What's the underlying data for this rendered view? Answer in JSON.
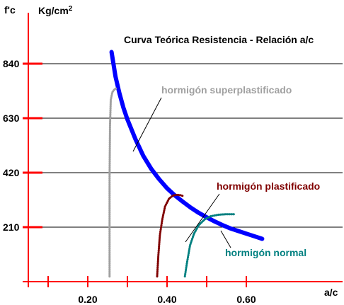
{
  "chart_data": {
    "type": "line",
    "title": "Curva Teórica  Resistencia - Relación a/c",
    "ylabel_main": "f'c",
    "ylabel_unit": "Kg/cm",
    "ylabel_unit_sup": "2",
    "xlabel": "a/c",
    "xlim": [
      0.05,
      0.65
    ],
    "ylim": [
      0,
      940
    ],
    "yticks": [
      210,
      420,
      630,
      840
    ],
    "ytick_labels": [
      "210",
      "420",
      "630",
      "840"
    ],
    "xticks": [
      0.1,
      0.2,
      0.3,
      0.4,
      0.5,
      0.6
    ],
    "xtick_labels": [
      "",
      "0.20",
      "",
      "0.40",
      "",
      "0.60"
    ],
    "grid": true,
    "colors": {
      "axis": "#ff0000",
      "grid": "#000000",
      "main_curve": "#0000ff",
      "superplastificado": "#a0a0a0",
      "plastificado": "#800000",
      "normal": "#008080",
      "title": "#000000"
    },
    "series": [
      {
        "name": "Curva Teórica  Resistencia - Relación a/c",
        "color": "#0000ff",
        "x": [
          0.26,
          0.27,
          0.28,
          0.29,
          0.3,
          0.32,
          0.34,
          0.36,
          0.38,
          0.4,
          0.42,
          0.44,
          0.46,
          0.48,
          0.5,
          0.52,
          0.54,
          0.56,
          0.58,
          0.6,
          0.62,
          0.64
        ],
        "y": [
          885,
          790,
          725,
          670,
          625,
          550,
          485,
          435,
          395,
          360,
          332,
          308,
          285,
          265,
          248,
          232,
          218,
          205,
          195,
          185,
          175,
          165
        ]
      },
      {
        "name": "hormigón superplastificado",
        "color": "#a0a0a0",
        "x": [
          0.255,
          0.255,
          0.256,
          0.258,
          0.262,
          0.268,
          0.272
        ],
        "y": [
          20,
          400,
          600,
          700,
          730,
          742,
          745
        ]
      },
      {
        "name": "hormigón plastificado",
        "color": "#800000",
        "x": [
          0.375,
          0.378,
          0.382,
          0.388,
          0.395,
          0.405,
          0.415,
          0.425,
          0.435,
          0.44
        ],
        "y": [
          20,
          100,
          180,
          240,
          290,
          320,
          332,
          335,
          333,
          330
        ]
      },
      {
        "name": "hormigón normal",
        "color": "#008080",
        "x": [
          0.445,
          0.45,
          0.458,
          0.468,
          0.48,
          0.495,
          0.51,
          0.53,
          0.55,
          0.57
        ],
        "y": [
          20,
          70,
          140,
          185,
          218,
          240,
          252,
          258,
          260,
          260
        ]
      }
    ],
    "annotations": [
      {
        "text": "hormigón superplastificado",
        "color": "#a0a0a0"
      },
      {
        "text": "hormigón plastificado",
        "color": "#800000"
      },
      {
        "text": "hormigón normal",
        "color": "#008080"
      }
    ]
  }
}
